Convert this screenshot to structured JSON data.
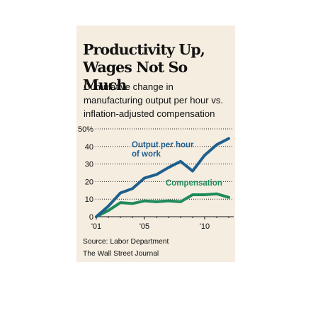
{
  "chart_data": {
    "type": "line",
    "title_line1": "Productivity Up,",
    "title_line2": "Wages Not So Much",
    "subtitle_line1": "Cumulative change in",
    "subtitle_line2": "manufacturing output per hour vs.",
    "subtitle_line3": "inflation-adjusted compensation",
    "x": [
      2001,
      2002,
      2003,
      2004,
      2005,
      2006,
      2007,
      2008,
      2009,
      2010,
      2011,
      2012
    ],
    "xlim": [
      2001,
      2012
    ],
    "ylim": [
      0,
      50
    ],
    "y_ticks": [
      "50%",
      "40",
      "30",
      "20",
      "10",
      "0"
    ],
    "x_ticks": [
      "'01",
      "'05",
      "'10"
    ],
    "grid": "dotted-horizontal",
    "series": [
      {
        "name_line1": "Output per hour",
        "name_line2": "of work",
        "color": "#1f5f8e",
        "values": [
          0,
          6,
          13.5,
          16,
          22,
          24,
          28,
          31.5,
          26,
          35,
          41,
          44.5
        ]
      },
      {
        "name_line1": "Compensation",
        "color": "#1f8a5c",
        "values": [
          0,
          3.5,
          8,
          7.5,
          9,
          8.5,
          9,
          8.5,
          12.5,
          12.5,
          13,
          11
        ]
      }
    ],
    "source": "Source: Labor Department",
    "credit": "The Wall Street Journal"
  }
}
